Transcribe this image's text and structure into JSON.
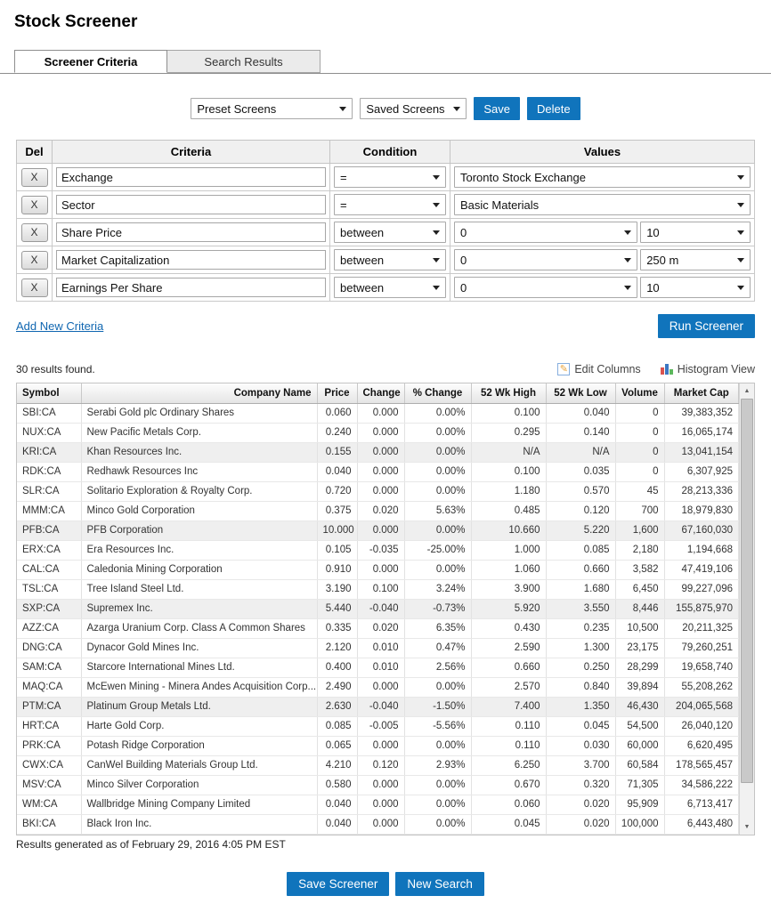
{
  "page": {
    "title": "Stock Screener"
  },
  "tabs": [
    {
      "label": "Screener Criteria",
      "active": true
    },
    {
      "label": "Search Results",
      "active": false
    }
  ],
  "controls": {
    "preset_select": "Preset Screens",
    "saved_select": "Saved Screens",
    "save_button": "Save",
    "delete_button": "Delete"
  },
  "criteria_table": {
    "headers": {
      "del": "Del",
      "criteria": "Criteria",
      "condition": "Condition",
      "values": "Values"
    },
    "delete_label": "X",
    "rows": [
      {
        "criteria": "Exchange",
        "condition": "=",
        "values": [
          "Toronto Stock Exchange"
        ]
      },
      {
        "criteria": "Sector",
        "condition": "=",
        "values": [
          "Basic Materials"
        ]
      },
      {
        "criteria": "Share Price",
        "condition": "between",
        "values": [
          "0",
          "10"
        ]
      },
      {
        "criteria": "Market Capitalization",
        "condition": "between",
        "values": [
          "0",
          "250 m"
        ]
      },
      {
        "criteria": "Earnings Per Share",
        "condition": "between",
        "values": [
          "0",
          "10"
        ]
      }
    ]
  },
  "actions": {
    "add_new_criteria": "Add New Criteria",
    "run_screener": "Run Screener"
  },
  "results": {
    "count_text": "30 results found.",
    "edit_columns_label": "Edit Columns",
    "histogram_view_label": "Histogram View",
    "columns": [
      "Symbol",
      "Company Name",
      "Price",
      "Change",
      "% Change",
      "52 Wk High",
      "52 Wk Low",
      "Volume",
      "Market Cap"
    ],
    "rows": [
      {
        "symbol": "SBI:CA",
        "name": "Serabi Gold plc Ordinary Shares",
        "price": "0.060",
        "change": "0.000",
        "pct": "0.00%",
        "high": "0.100",
        "low": "0.040",
        "volume": "0",
        "mktcap": "39,383,352",
        "trend": "flat",
        "shaded": false
      },
      {
        "symbol": "NUX:CA",
        "name": "New Pacific Metals Corp.",
        "price": "0.240",
        "change": "0.000",
        "pct": "0.00%",
        "high": "0.295",
        "low": "0.140",
        "volume": "0",
        "mktcap": "16,065,174",
        "trend": "flat",
        "shaded": false
      },
      {
        "symbol": "KRI:CA",
        "name": "Khan Resources Inc.",
        "price": "0.155",
        "change": "0.000",
        "pct": "0.00%",
        "high": "N/A",
        "low": "N/A",
        "volume": "0",
        "mktcap": "13,041,154",
        "trend": "flat",
        "shaded": true
      },
      {
        "symbol": "RDK:CA",
        "name": "Redhawk Resources Inc",
        "price": "0.040",
        "change": "0.000",
        "pct": "0.00%",
        "high": "0.100",
        "low": "0.035",
        "volume": "0",
        "mktcap": "6,307,925",
        "trend": "flat",
        "shaded": false
      },
      {
        "symbol": "SLR:CA",
        "name": "Solitario Exploration & Royalty Corp.",
        "price": "0.720",
        "change": "0.000",
        "pct": "0.00%",
        "high": "1.180",
        "low": "0.570",
        "volume": "45",
        "mktcap": "28,213,336",
        "trend": "flat",
        "shaded": false
      },
      {
        "symbol": "MMM:CA",
        "name": "Minco Gold Corporation",
        "price": "0.375",
        "change": "0.020",
        "pct": "5.63%",
        "high": "0.485",
        "low": "0.120",
        "volume": "700",
        "mktcap": "18,979,830",
        "trend": "up",
        "shaded": false
      },
      {
        "symbol": "PFB:CA",
        "name": "PFB Corporation",
        "price": "10.000",
        "change": "0.000",
        "pct": "0.00%",
        "high": "10.660",
        "low": "5.220",
        "volume": "1,600",
        "mktcap": "67,160,030",
        "trend": "flat",
        "shaded": true
      },
      {
        "symbol": "ERX:CA",
        "name": "Era Resources Inc.",
        "price": "0.105",
        "change": "-0.035",
        "pct": "-25.00%",
        "high": "1.000",
        "low": "0.085",
        "volume": "2,180",
        "mktcap": "1,194,668",
        "trend": "down",
        "shaded": false
      },
      {
        "symbol": "CAL:CA",
        "name": "Caledonia Mining Corporation",
        "price": "0.910",
        "change": "0.000",
        "pct": "0.00%",
        "high": "1.060",
        "low": "0.660",
        "volume": "3,582",
        "mktcap": "47,419,106",
        "trend": "flat",
        "shaded": false
      },
      {
        "symbol": "TSL:CA",
        "name": "Tree Island Steel Ltd.",
        "price": "3.190",
        "change": "0.100",
        "pct": "3.24%",
        "high": "3.900",
        "low": "1.680",
        "volume": "6,450",
        "mktcap": "99,227,096",
        "trend": "up",
        "shaded": false
      },
      {
        "symbol": "SXP:CA",
        "name": "Supremex Inc.",
        "price": "5.440",
        "change": "-0.040",
        "pct": "-0.73%",
        "high": "5.920",
        "low": "3.550",
        "volume": "8,446",
        "mktcap": "155,875,970",
        "trend": "down",
        "shaded": true
      },
      {
        "symbol": "AZZ:CA",
        "name": "Azarga Uranium Corp. Class A Common Shares",
        "price": "0.335",
        "change": "0.020",
        "pct": "6.35%",
        "high": "0.430",
        "low": "0.235",
        "volume": "10,500",
        "mktcap": "20,211,325",
        "trend": "up",
        "shaded": false
      },
      {
        "symbol": "DNG:CA",
        "name": "Dynacor Gold Mines Inc.",
        "price": "2.120",
        "change": "0.010",
        "pct": "0.47%",
        "high": "2.590",
        "low": "1.300",
        "volume": "23,175",
        "mktcap": "79,260,251",
        "trend": "up",
        "shaded": false
      },
      {
        "symbol": "SAM:CA",
        "name": "Starcore International Mines Ltd.",
        "price": "0.400",
        "change": "0.010",
        "pct": "2.56%",
        "high": "0.660",
        "low": "0.250",
        "volume": "28,299",
        "mktcap": "19,658,740",
        "trend": "up",
        "shaded": false
      },
      {
        "symbol": "MAQ:CA",
        "name": "McEwen Mining - Minera Andes Acquisition Corp....",
        "price": "2.490",
        "change": "0.000",
        "pct": "0.00%",
        "high": "2.570",
        "low": "0.840",
        "volume": "39,894",
        "mktcap": "55,208,262",
        "trend": "flat",
        "shaded": false
      },
      {
        "symbol": "PTM:CA",
        "name": "Platinum Group Metals Ltd.",
        "price": "2.630",
        "change": "-0.040",
        "pct": "-1.50%",
        "high": "7.400",
        "low": "1.350",
        "volume": "46,430",
        "mktcap": "204,065,568",
        "trend": "down",
        "shaded": true
      },
      {
        "symbol": "HRT:CA",
        "name": "Harte Gold Corp.",
        "price": "0.085",
        "change": "-0.005",
        "pct": "-5.56%",
        "high": "0.110",
        "low": "0.045",
        "volume": "54,500",
        "mktcap": "26,040,120",
        "trend": "down",
        "shaded": false
      },
      {
        "symbol": "PRK:CA",
        "name": "Potash Ridge Corporation",
        "price": "0.065",
        "change": "0.000",
        "pct": "0.00%",
        "high": "0.110",
        "low": "0.030",
        "volume": "60,000",
        "mktcap": "6,620,495",
        "trend": "flat",
        "shaded": false
      },
      {
        "symbol": "CWX:CA",
        "name": "CanWel Building Materials Group Ltd.",
        "price": "4.210",
        "change": "0.120",
        "pct": "2.93%",
        "high": "6.250",
        "low": "3.700",
        "volume": "60,584",
        "mktcap": "178,565,457",
        "trend": "up",
        "shaded": false
      },
      {
        "symbol": "MSV:CA",
        "name": "Minco Silver Corporation",
        "price": "0.580",
        "change": "0.000",
        "pct": "0.00%",
        "high": "0.670",
        "low": "0.320",
        "volume": "71,305",
        "mktcap": "34,586,222",
        "trend": "flat",
        "shaded": false
      },
      {
        "symbol": "WM:CA",
        "name": "Wallbridge Mining Company Limited",
        "price": "0.040",
        "change": "0.000",
        "pct": "0.00%",
        "high": "0.060",
        "low": "0.020",
        "volume": "95,909",
        "mktcap": "6,713,417",
        "trend": "flat",
        "shaded": false
      },
      {
        "symbol": "BKI:CA",
        "name": "Black Iron Inc.",
        "price": "0.040",
        "change": "0.000",
        "pct": "0.00%",
        "high": "0.045",
        "low": "0.020",
        "volume": "100,000",
        "mktcap": "6,443,480",
        "trend": "flat",
        "shaded": false
      }
    ],
    "footer": "Results generated as of February 29, 2016 4:05 PM EST"
  },
  "footer_buttons": {
    "save_screener": "Save Screener",
    "new_search": "New Search"
  },
  "icons": {
    "scroll_up": "▲",
    "scroll_down": "▼",
    "pencil_glyph": "✎"
  },
  "colors": {
    "accent_blue": "#1074bc",
    "positive": "#009900",
    "negative": "#ee0000",
    "shaded_row": "#efefef"
  }
}
